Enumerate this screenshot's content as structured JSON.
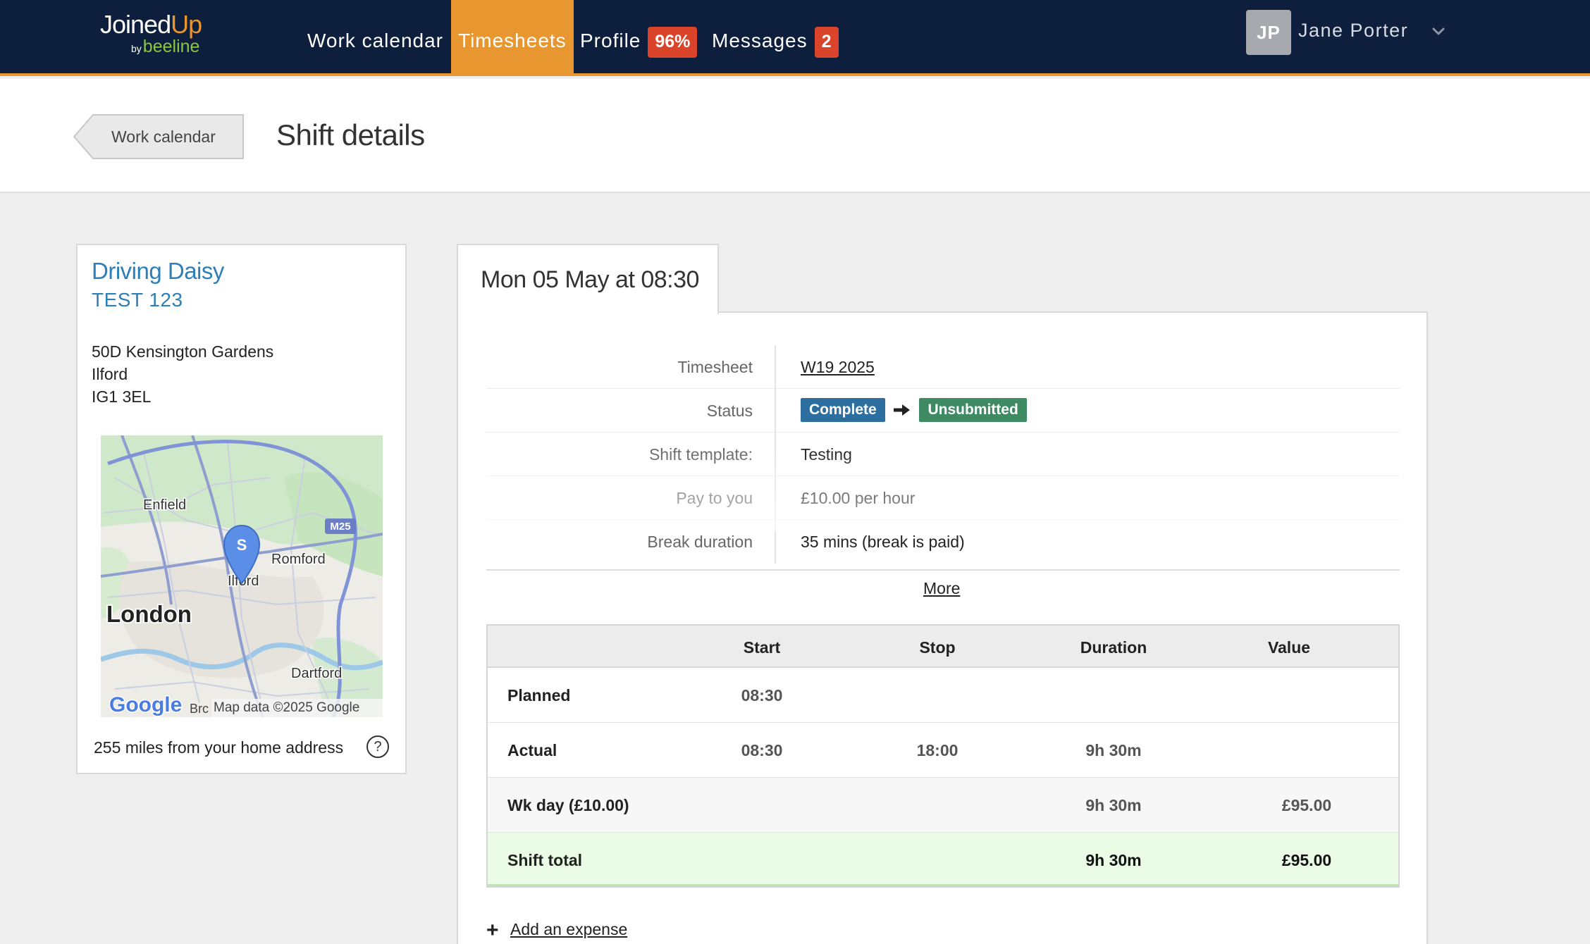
{
  "app": {
    "logo_main": "Joined",
    "logo_accent": "Up",
    "logo_by": "by",
    "logo_beeline": "beeline"
  },
  "nav": {
    "items": [
      {
        "label": "Work calendar"
      },
      {
        "label": "Timesheets",
        "active": true
      },
      {
        "label": "Profile",
        "badge": "96%"
      },
      {
        "label": "Messages",
        "badge": "2"
      }
    ],
    "user": {
      "initials": "JP",
      "name": "Jane Porter"
    }
  },
  "header": {
    "back_label": "Work calendar",
    "title": "Shift details"
  },
  "location": {
    "client": "Driving Daisy",
    "code": "TEST 123",
    "address_lines": [
      "50D Kensington Gardens",
      "Ilford",
      "IG1 3EL"
    ],
    "map": {
      "labels": [
        "Enfield",
        "Romford",
        "Ilford",
        "London",
        "Dartford",
        "M25"
      ],
      "pin_letter": "S",
      "google": "Google",
      "attribution_clip": "Brc",
      "attribution": "Map data ©2025 Google"
    },
    "distance": "255 miles from your home address",
    "help_glyph": "?"
  },
  "shift": {
    "date_heading": "Mon 05 May at 08:30",
    "details": [
      {
        "label": "Timesheet",
        "value": "W19 2025"
      },
      {
        "label": "Status",
        "from": "Complete",
        "to": "Unsubmitted"
      },
      {
        "label": "Shift template:",
        "value": "Testing"
      },
      {
        "label": "Pay to you",
        "value": "£10.00 per hour"
      },
      {
        "label": "Break duration",
        "value": "35 mins (break is paid)"
      }
    ],
    "more_label": "More",
    "times": {
      "columns": [
        "Start",
        "Stop",
        "Duration",
        "Value"
      ],
      "rows": [
        {
          "name": "Planned",
          "start": "08:30",
          "stop": "",
          "duration": "",
          "value": ""
        },
        {
          "name": "Actual",
          "start": "08:30",
          "stop": "18:00",
          "duration": "9h 30m",
          "value": ""
        },
        {
          "name": "Wk day (£10.00)",
          "start": "",
          "stop": "",
          "duration": "9h 30m",
          "value": "£95.00"
        },
        {
          "name": "Shift total",
          "start": "",
          "stop": "",
          "duration": "9h 30m",
          "value": "£95.00"
        }
      ]
    },
    "add_expense_label": "Add an expense"
  },
  "colors": {
    "nav_bg": "#0d1f3c",
    "accent": "#e8962f",
    "badge_red": "#d9442a",
    "link_blue": "#2e7fb8",
    "status_complete": "#2c6f9f",
    "status_unsubmitted": "#3d8a63",
    "total_row": "#eafbe6"
  }
}
